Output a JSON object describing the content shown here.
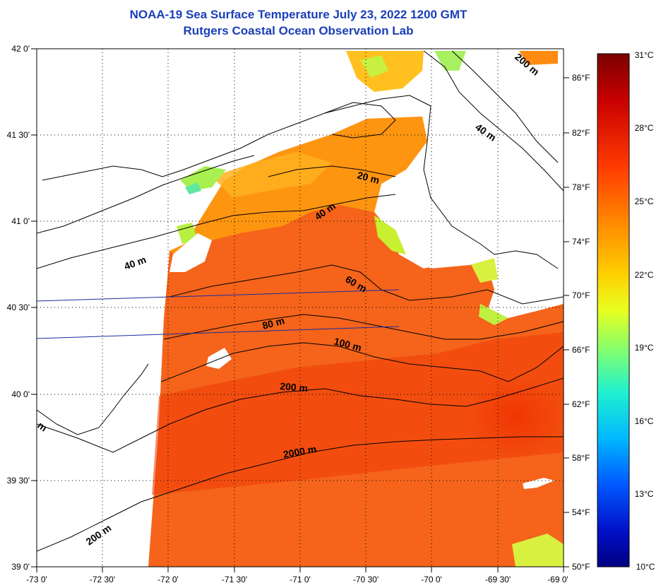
{
  "title_line1": "NOAA-19 Sea Surface Temperature July 23, 2022 1200 GMT",
  "title_line2": "Rutgers Coastal Ocean Observation Lab",
  "map": {
    "lon_labels": [
      "-73 0'",
      "-72 30'",
      "-72 0'",
      "-71 30'",
      "-71 0'",
      "-70 30'",
      "-70 0'",
      "-69 30'",
      "-69 0'"
    ],
    "lat_labels": [
      "42 0'",
      "41 30'",
      "41 0'",
      "40 30'",
      "40 0'",
      "39 30'",
      "39 0'"
    ],
    "lon_range": [
      -73.0,
      -69.0
    ],
    "lat_range": [
      39.0,
      42.0
    ],
    "grid": "dotted",
    "depth_labels": [
      "200 m",
      "40 m",
      "20 m",
      "40 m",
      "40 m",
      "60 m",
      "80 m",
      "100 m",
      "200 m",
      "2000 m",
      "200 m",
      "m"
    ]
  },
  "colorbar": {
    "celsius_labels": [
      "31°C",
      "28°C",
      "25°C",
      "22°C",
      "19°C",
      "16°C",
      "13°C",
      "10°C"
    ],
    "fahrenheit_labels": [
      "86°F",
      "82°F",
      "78°F",
      "74°F",
      "70°F",
      "66°F",
      "62°F",
      "58°F",
      "54°F",
      "50°F"
    ],
    "range_c": [
      10,
      31
    ],
    "colors": [
      "#7a0000",
      "#c80000",
      "#ff3a00",
      "#ff8a00",
      "#ffd000",
      "#e8ff20",
      "#80ff70",
      "#20f0d0",
      "#00b8ff",
      "#0058ff",
      "#0010c8",
      "#000080"
    ]
  }
}
